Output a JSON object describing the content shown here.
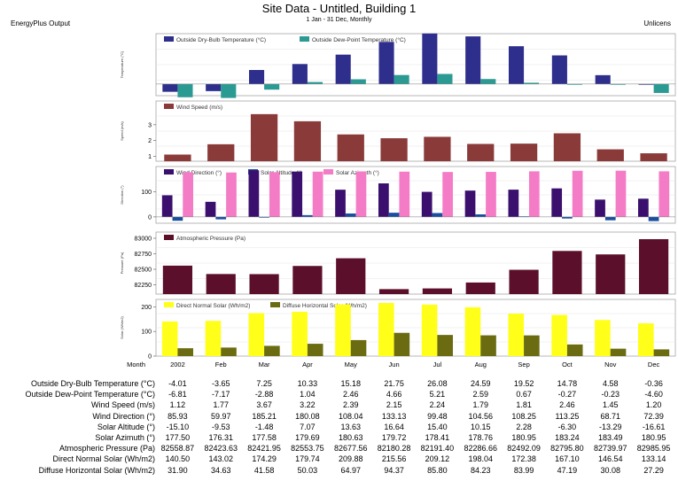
{
  "header": {
    "title": "Site Data - Untitled, Building 1",
    "subtitle": "1 Jan - 31 Dec, Monthly",
    "left": "EnergyPlus Output",
    "right": "Unlicens"
  },
  "months": [
    "2002",
    "Feb",
    "Mar",
    "Apr",
    "May",
    "Jun",
    "Jul",
    "Aug",
    "Sep",
    "Oct",
    "Nov",
    "Dec"
  ],
  "month_axis_label": "Month",
  "colors": {
    "drybulb": "#2e2e8c",
    "dewpoint": "#2a9a93",
    "wind_speed": "#8b3a3a",
    "wind_dir": "#3a0f6e",
    "solar_alt": "#1a4fa0",
    "solar_az": "#f47cc6",
    "pressure": "#5b0f2a",
    "direct": "#ffff1a",
    "diffuse": "#6b6b12"
  },
  "chart_data": [
    {
      "type": "bar",
      "legend": [
        "Outside Dry-Bulb Temperature (°C)",
        "Outside Dew-Point Temperature (°C)"
      ],
      "ylabel": "Temperature (°C)",
      "ylim": [
        -6,
        26
      ],
      "yticks": [],
      "series": [
        {
          "name": "Outside Dry-Bulb Temperature (°C)",
          "values": [
            -4.01,
            -3.65,
            7.25,
            10.33,
            15.18,
            21.75,
            26.08,
            24.59,
            19.52,
            14.78,
            4.58,
            -0.36
          ]
        },
        {
          "name": "Outside Dew-Point Temperature (°C)",
          "values": [
            -6.81,
            -7.17,
            -2.88,
            1.04,
            2.46,
            4.66,
            5.21,
            2.59,
            0.67,
            -0.27,
            -0.23,
            -4.6
          ]
        }
      ]
    },
    {
      "type": "bar",
      "legend": [
        "Wind Speed (m/s)"
      ],
      "ylabel": "Speed (m/s)",
      "ylim": [
        0.7,
        4.5
      ],
      "yticks": [
        "1",
        "2",
        "3"
      ],
      "series": [
        {
          "name": "Wind Speed (m/s)",
          "values": [
            1.12,
            1.77,
            3.67,
            3.22,
            2.39,
            2.15,
            2.24,
            1.79,
            1.81,
            2.46,
            1.45,
            1.2
          ]
        }
      ]
    },
    {
      "type": "bar",
      "legend": [
        "Wind Direction (°)",
        "Solar Altitude (°)",
        "Solar Azimuth (°)"
      ],
      "ylabel": "Direction (°)",
      "ylim": [
        -25,
        200
      ],
      "yticks": [
        "0",
        "100"
      ],
      "series": [
        {
          "name": "Wind Direction (°)",
          "values": [
            85.93,
            59.97,
            185.21,
            180.08,
            108.04,
            133.13,
            99.48,
            104.56,
            108.25,
            113.25,
            68.71,
            72.39
          ]
        },
        {
          "name": "Solar Altitude (°)",
          "values": [
            -15.1,
            -9.53,
            -1.48,
            7.07,
            13.63,
            16.64,
            15.4,
            10.15,
            2.28,
            -6.3,
            -13.29,
            -16.61
          ]
        },
        {
          "name": "Solar Azimuth (°)",
          "values": [
            177.5,
            176.31,
            177.58,
            179.69,
            180.63,
            179.72,
            178.41,
            178.76,
            180.95,
            183.24,
            183.49,
            180.95
          ]
        }
      ]
    },
    {
      "type": "bar",
      "legend": [
        "Atmospheric Pressure (Pa)"
      ],
      "ylabel": "Pressure (Pa)",
      "ylim": [
        82100,
        83100
      ],
      "yticks": [
        "82250",
        "82500",
        "82750",
        "83000"
      ],
      "series": [
        {
          "name": "Atmospheric Pressure (Pa)",
          "values": [
            82558.87,
            82423.63,
            82421.95,
            82553.75,
            82677.56,
            82180.28,
            82191.4,
            82286.66,
            82492.09,
            82795.8,
            82739.97,
            82985.95
          ]
        }
      ]
    },
    {
      "type": "bar",
      "legend": [
        "Direct Normal Solar (Wh/m2)",
        "Diffuse Horizontal Solar (Wh/m2)"
      ],
      "ylabel": "Solar (Wh/m2)",
      "ylim": [
        0,
        230
      ],
      "yticks": [
        "0",
        "100",
        "200"
      ],
      "series": [
        {
          "name": "Direct Normal Solar (Wh/m2)",
          "values": [
            140.5,
            143.02,
            174.29,
            179.74,
            209.88,
            215.56,
            209.12,
            198.04,
            172.38,
            167.1,
            146.54,
            133.14
          ]
        },
        {
          "name": "Diffuse Horizontal Solar (Wh/m2)",
          "values": [
            31.9,
            34.63,
            41.58,
            50.03,
            64.97,
            94.37,
            85.8,
            84.23,
            83.99,
            47.19,
            30.08,
            27.29
          ]
        }
      ]
    }
  ],
  "table": {
    "rows": [
      {
        "label": "Outside Dry-Bulb Temperature (°C)",
        "values": [
          "-4.01",
          "-3.65",
          "7.25",
          "10.33",
          "15.18",
          "21.75",
          "26.08",
          "24.59",
          "19.52",
          "14.78",
          "4.58",
          "-0.36"
        ]
      },
      {
        "label": "Outside Dew-Point Temperature (°C)",
        "values": [
          "-6.81",
          "-7.17",
          "-2.88",
          "1.04",
          "2.46",
          "4.66",
          "5.21",
          "2.59",
          "0.67",
          "-0.27",
          "-0.23",
          "-4.60"
        ]
      },
      {
        "label": "Wind Speed (m/s)",
        "values": [
          "1.12",
          "1.77",
          "3.67",
          "3.22",
          "2.39",
          "2.15",
          "2.24",
          "1.79",
          "1.81",
          "2.46",
          "1.45",
          "1.20"
        ]
      },
      {
        "label": "Wind Direction (°)",
        "values": [
          "85.93",
          "59.97",
          "185.21",
          "180.08",
          "108.04",
          "133.13",
          "99.48",
          "104.56",
          "108.25",
          "113.25",
          "68.71",
          "72.39"
        ]
      },
      {
        "label": "Solar Altitude (°)",
        "values": [
          "-15.10",
          "-9.53",
          "-1.48",
          "7.07",
          "13.63",
          "16.64",
          "15.40",
          "10.15",
          "2.28",
          "-6.30",
          "-13.29",
          "-16.61"
        ]
      },
      {
        "label": "Solar Azimuth (°)",
        "values": [
          "177.50",
          "176.31",
          "177.58",
          "179.69",
          "180.63",
          "179.72",
          "178.41",
          "178.76",
          "180.95",
          "183.24",
          "183.49",
          "180.95"
        ]
      },
      {
        "label": "Atmospheric Pressure (Pa)",
        "values": [
          "82558.87",
          "82423.63",
          "82421.95",
          "82553.75",
          "82677.56",
          "82180.28",
          "82191.40",
          "82286.66",
          "82492.09",
          "82795.80",
          "82739.97",
          "82985.95"
        ]
      },
      {
        "label": "Direct Normal Solar (Wh/m2)",
        "values": [
          "140.50",
          "143.02",
          "174.29",
          "179.74",
          "209.88",
          "215.56",
          "209.12",
          "198.04",
          "172.38",
          "167.10",
          "146.54",
          "133.14"
        ]
      },
      {
        "label": "Diffuse Horizontal Solar (Wh/m2)",
        "values": [
          "31.90",
          "34.63",
          "41.58",
          "50.03",
          "64.97",
          "94.37",
          "85.80",
          "84.23",
          "83.99",
          "47.19",
          "30.08",
          "27.29"
        ]
      }
    ]
  }
}
